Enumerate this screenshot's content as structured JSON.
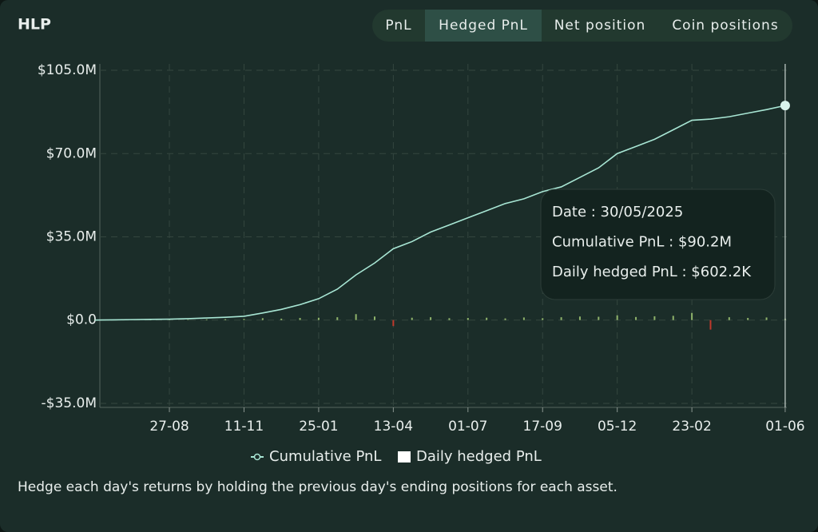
{
  "header": {
    "title": "HLP",
    "tabs": [
      "PnL",
      "Hedged PnL",
      "Net position",
      "Coin positions"
    ],
    "active_tab": 1
  },
  "chart_data": {
    "type": "line",
    "categories": [
      null,
      null,
      null,
      null,
      "27-08",
      null,
      null,
      null,
      "11-11",
      null,
      null,
      null,
      "25-01",
      null,
      null,
      null,
      "13-04",
      null,
      null,
      null,
      "01-07",
      null,
      null,
      null,
      "17-09",
      null,
      null,
      null,
      "05-12",
      null,
      null,
      null,
      "23-02",
      null,
      null,
      null,
      null,
      "01-06"
    ],
    "series": [
      {
        "name": "Cumulative PnL",
        "color": "#a8e6d4",
        "values": [
          0,
          0.1,
          0.2,
          0.3,
          0.4,
          0.6,
          0.9,
          1.2,
          1.6,
          3,
          4.5,
          6.5,
          9,
          13,
          19,
          24,
          30,
          33,
          37,
          40,
          43,
          46,
          49,
          51,
          54,
          56,
          60,
          64,
          70,
          73,
          76,
          80,
          84,
          84.5,
          85.5,
          87,
          88.5,
          90.2
        ]
      },
      {
        "name": "Daily hedged PnL",
        "type": "bar",
        "color": "#8fb36b",
        "negative_color": "#c0392b",
        "values": [
          0.1,
          0.1,
          0.2,
          0.2,
          0.3,
          0.2,
          0.3,
          0.4,
          0.5,
          0.8,
          0.6,
          0.9,
          1,
          1.2,
          2.5,
          1.5,
          -2.5,
          1,
          1.2,
          0.8,
          0.9,
          1,
          0.7,
          1.1,
          0.8,
          1.2,
          1.5,
          1.4,
          2,
          1.3,
          1.6,
          1.8,
          3,
          -4,
          1.2,
          0.9,
          1.1,
          0.6022
        ]
      }
    ],
    "ylim": [
      -36.7,
      107.7
    ],
    "yticks": [
      {
        "value": -35,
        "label": "-$35.0M"
      },
      {
        "value": 0,
        "label": "$0.0"
      },
      {
        "value": 35,
        "label": "$35.0M"
      },
      {
        "value": 70,
        "label": "$70.0M"
      },
      {
        "value": 105,
        "label": "$105.0M"
      }
    ],
    "grid": true,
    "tooltip": {
      "lines": [
        "Date : 30/05/2025",
        "Cumulative PnL : $90.2M",
        "Daily hedged PnL : $602.2K"
      ]
    }
  },
  "footer": "Hedge each day's returns by holding the previous day's ending positions for each asset."
}
